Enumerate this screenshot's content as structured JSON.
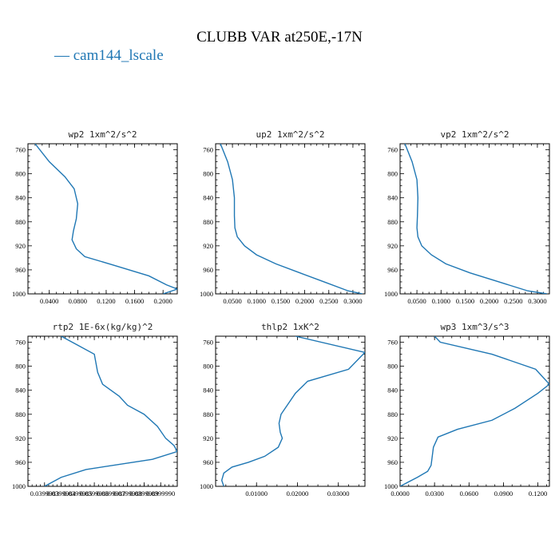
{
  "title": "CLUBB VAR at250E,-17N",
  "legend": {
    "label": "cam144_lscale",
    "color": "#1f77b4"
  },
  "chart_data": [
    {
      "type": "line",
      "title": "wp2  1xm^2/s^2",
      "xlim": [
        0.01,
        0.22
      ],
      "ylim": [
        1000,
        750
      ],
      "xticks": [
        0.04,
        0.08,
        0.12,
        0.16,
        0.2
      ],
      "xticklabels": [
        "0.0400",
        "0.0800",
        "0.1200",
        "0.1600",
        "0.2000"
      ],
      "yticks": [
        760,
        800,
        840,
        880,
        920,
        960,
        1000
      ],
      "series": [
        {
          "name": "cam144_lscale",
          "x": [
            0.02,
            0.04,
            0.062,
            0.075,
            0.08,
            0.078,
            0.074,
            0.072,
            0.078,
            0.09,
            0.13,
            0.18,
            0.205,
            0.22,
            0.2
          ],
          "y": [
            750,
            780,
            805,
            825,
            850,
            875,
            895,
            910,
            925,
            938,
            952,
            970,
            985,
            992,
            1000
          ]
        }
      ]
    },
    {
      "type": "line",
      "title": "up2  1xm^2/s^2",
      "xlim": [
        0.015,
        0.325
      ],
      "ylim": [
        1000,
        750
      ],
      "xticks": [
        0.05,
        0.1,
        0.15,
        0.2,
        0.25,
        0.3
      ],
      "xticklabels": [
        "0.0500",
        "0.1000",
        "0.1500",
        "0.2000",
        "0.2500",
        "0.3000"
      ],
      "yticks": [
        760,
        800,
        840,
        880,
        920,
        960,
        1000
      ],
      "series": [
        {
          "name": "cam144_lscale",
          "x": [
            0.025,
            0.04,
            0.05,
            0.054,
            0.054,
            0.055,
            0.06,
            0.075,
            0.1,
            0.14,
            0.19,
            0.24,
            0.29,
            0.32
          ],
          "y": [
            750,
            780,
            810,
            840,
            870,
            890,
            905,
            920,
            935,
            950,
            965,
            980,
            995,
            1000
          ]
        }
      ]
    },
    {
      "type": "line",
      "title": "vp2  1xm^2/s^2",
      "xlim": [
        0.015,
        0.325
      ],
      "ylim": [
        1000,
        750
      ],
      "xticks": [
        0.05,
        0.1,
        0.15,
        0.2,
        0.25,
        0.3
      ],
      "xticklabels": [
        "0.0500",
        "0.1000",
        "0.1500",
        "0.2000",
        "0.2500",
        "0.3000"
      ],
      "yticks": [
        760,
        800,
        840,
        880,
        920,
        960,
        1000
      ],
      "series": [
        {
          "name": "cam144_lscale",
          "x": [
            0.025,
            0.04,
            0.05,
            0.052,
            0.051,
            0.05,
            0.052,
            0.06,
            0.08,
            0.11,
            0.16,
            0.22,
            0.28,
            0.32
          ],
          "y": [
            750,
            780,
            810,
            840,
            870,
            890,
            905,
            920,
            935,
            950,
            965,
            980,
            995,
            1000
          ]
        }
      ]
    },
    {
      "type": "line",
      "title": "rtp2  1E-6x(kg/kg)^2",
      "xlim": [
        0.0399982,
        0.0399991
      ],
      "ylim": [
        1000,
        750
      ],
      "xticks": [
        0.0399983,
        0.0399984,
        0.0399985,
        0.0399986,
        0.0399987,
        0.0399988,
        0.0399989,
        0.039999
      ],
      "xticklabels": [
        "0.0399983",
        "0.0399984",
        "0.0399985",
        "0.0399986",
        "0.0399987",
        "0.0399988",
        "0.0399989",
        "0.0399990"
      ],
      "yticks": [
        760,
        800,
        840,
        880,
        920,
        960,
        1000
      ],
      "series": [
        {
          "name": "cam144_lscale",
          "x": [
            0.0399984,
            0.0399985,
            0.0399986,
            0.03999862,
            0.03999865,
            0.03999875,
            0.0399988,
            0.0399989,
            0.03999898,
            0.03999903,
            0.03999908,
            0.0399991,
            0.03999895,
            0.03999855,
            0.0399984,
            0.0399983
          ],
          "y": [
            750,
            765,
            780,
            810,
            830,
            850,
            865,
            880,
            900,
            920,
            932,
            942,
            955,
            972,
            985,
            1000
          ]
        }
      ]
    },
    {
      "type": "line",
      "title": "thlp2  1xK^2",
      "xlim": [
        0.0,
        0.0365
      ],
      "ylim": [
        1000,
        750
      ],
      "xticks": [
        0.01,
        0.02,
        0.03
      ],
      "xticklabels": [
        "0.01000",
        "0.02000",
        "0.03000"
      ],
      "yticks": [
        760,
        800,
        840,
        880,
        920,
        960,
        1000
      ],
      "series": [
        {
          "name": "cam144_lscale",
          "x": [
            0.0195,
            0.0365,
            0.0325,
            0.0225,
            0.0195,
            0.0175,
            0.016,
            0.0155,
            0.0158,
            0.0163,
            0.0153,
            0.012,
            0.008,
            0.004,
            0.002,
            0.0015,
            0.002
          ],
          "y": [
            750,
            777,
            805,
            825,
            845,
            865,
            880,
            895,
            910,
            920,
            935,
            950,
            960,
            968,
            978,
            990,
            1000
          ]
        }
      ]
    },
    {
      "type": "line",
      "title": "wp3  1xm^3/s^3",
      "xlim": [
        0.0,
        0.13
      ],
      "ylim": [
        1000,
        750
      ],
      "xticks": [
        0.0,
        0.03,
        0.06,
        0.09,
        0.12
      ],
      "xticklabels": [
        "0.0000",
        "0.0300",
        "0.0600",
        "0.0900",
        "0.1200"
      ],
      "yticks": [
        760,
        800,
        840,
        880,
        920,
        960,
        1000
      ],
      "series": [
        {
          "name": "cam144_lscale",
          "x": [
            0.03,
            0.035,
            0.08,
            0.118,
            0.13,
            0.12,
            0.1,
            0.08,
            0.05,
            0.033,
            0.029,
            0.028,
            0.027,
            0.024,
            0.015,
            0.005,
            0.0
          ],
          "y": [
            750,
            760,
            780,
            805,
            830,
            845,
            870,
            890,
            905,
            918,
            935,
            950,
            965,
            975,
            985,
            995,
            1000
          ]
        }
      ]
    }
  ]
}
